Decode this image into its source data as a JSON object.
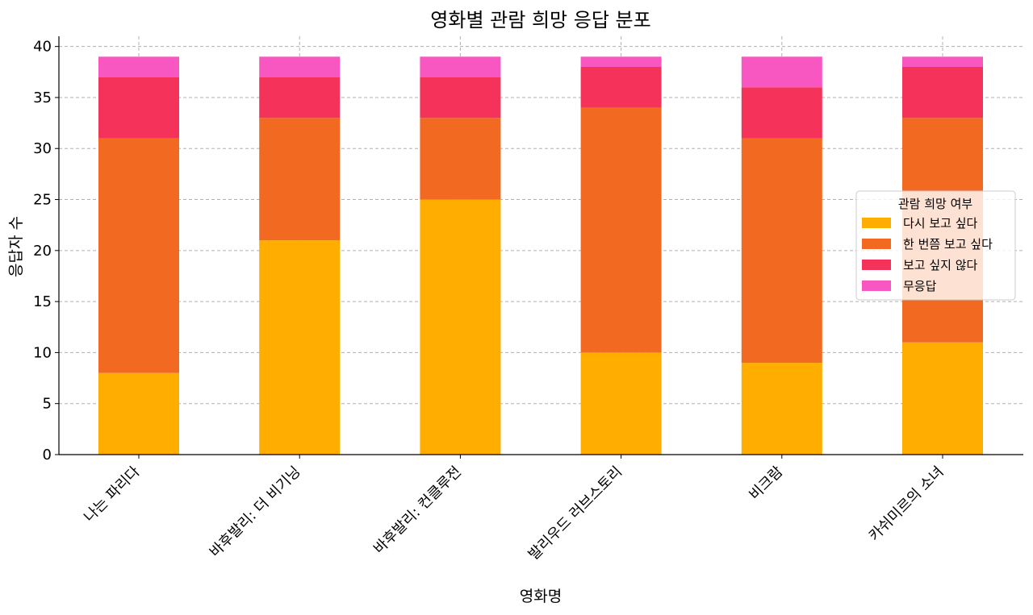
{
  "chart_data": {
    "type": "bar",
    "stacked": true,
    "title": "영화별 관람 희망 응답 분포",
    "xlabel": "영화명",
    "ylabel": "응답자 수",
    "ylim": [
      0,
      41
    ],
    "yticks": [
      0,
      5,
      10,
      15,
      20,
      25,
      30,
      35,
      40
    ],
    "grid": true,
    "legend_title": "관람 희망 여부",
    "legend_position": "center-right",
    "categories": [
      "나는 파리다",
      "바후발리: 더 비기닝",
      "바후발리: 컨클루전",
      "발리우드 러브스토리",
      "비크람",
      "카쉬미르의 소녀"
    ],
    "series": [
      {
        "name": "다시 보고 싶다",
        "color": "#FFAE00",
        "values": [
          8,
          21,
          25,
          10,
          9,
          11
        ]
      },
      {
        "name": "한 번쯤 보고 싶다",
        "color": "#F26A22",
        "values": [
          23,
          12,
          8,
          24,
          22,
          22
        ]
      },
      {
        "name": "보고 싶지 않다",
        "color": "#F5325A",
        "values": [
          6,
          4,
          4,
          4,
          5,
          5
        ]
      },
      {
        "name": "무응답",
        "color": "#F857C1",
        "values": [
          2,
          2,
          2,
          1,
          3,
          1
        ]
      }
    ]
  }
}
